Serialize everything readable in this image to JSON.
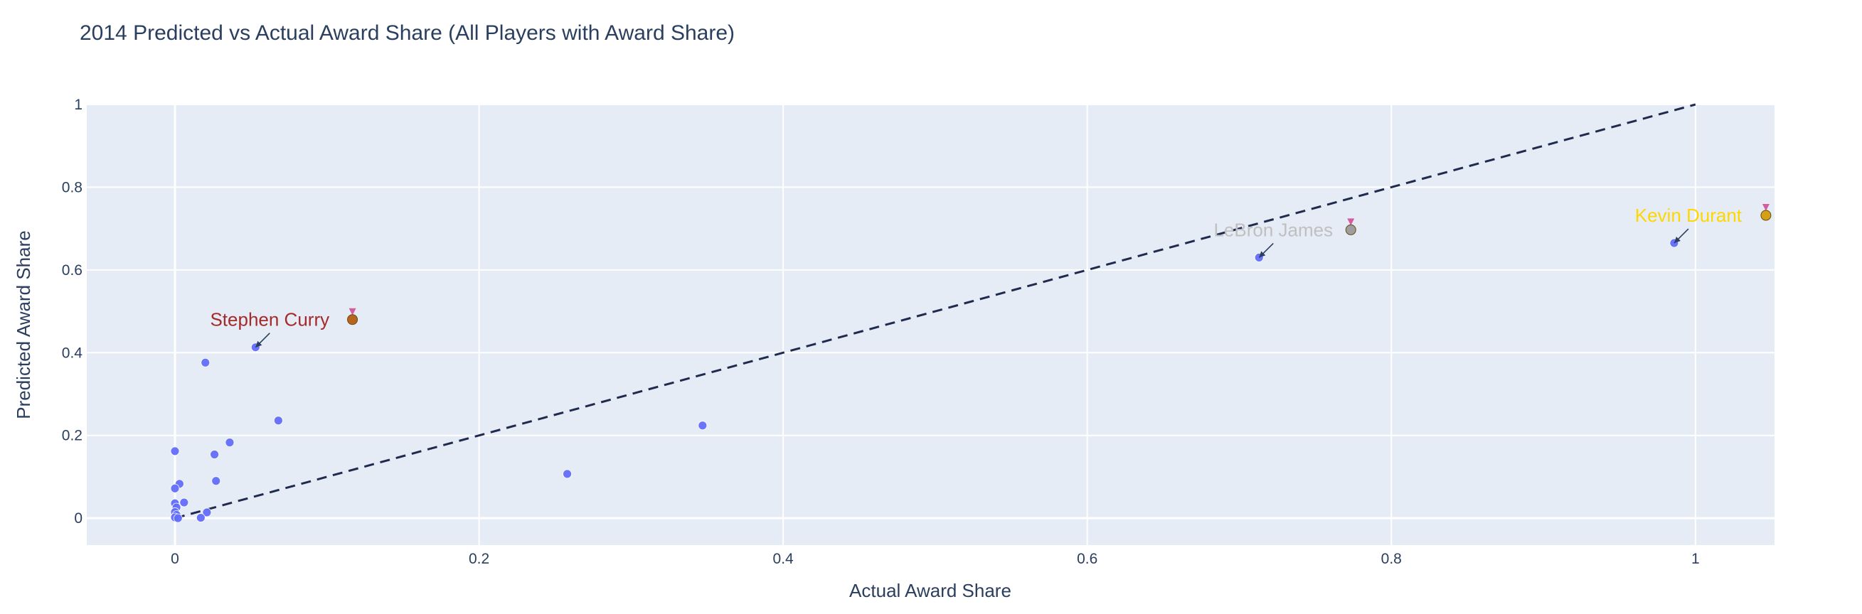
{
  "chart_data": {
    "type": "scatter",
    "title": "2014 Predicted vs Actual Award Share (All Players with Award Share)",
    "xlabel": "Actual Award Share",
    "ylabel": "Predicted Award Share",
    "xlim": [
      -0.058,
      1.052
    ],
    "ylim": [
      -0.065,
      1.0
    ],
    "xticks": [
      0,
      0.2,
      0.4,
      0.6,
      0.8,
      1
    ],
    "xtick_labels": [
      "0",
      "0.2",
      "0.4",
      "0.6",
      "0.8",
      "1"
    ],
    "yticks": [
      0,
      0.2,
      0.4,
      0.6,
      0.8,
      1
    ],
    "ytick_labels": [
      "0",
      "0.2",
      "0.4",
      "0.6",
      "0.8",
      "1"
    ],
    "grid": true,
    "background": "#e5ecf6",
    "point_color": "#636efa",
    "reference_line": {
      "x": [
        0,
        1
      ],
      "y": [
        0,
        1
      ],
      "style": "dashed",
      "color": "#1f2a4f"
    },
    "series": [
      {
        "points": [
          [
            0.986,
            0.665
          ],
          [
            0.713,
            0.63
          ],
          [
            0.347,
            0.224
          ],
          [
            0.258,
            0.107
          ],
          [
            0.068,
            0.236
          ],
          [
            0.053,
            0.413
          ],
          [
            0.036,
            0.183
          ],
          [
            0.027,
            0.09
          ],
          [
            0.026,
            0.154
          ],
          [
            0.02,
            0.376
          ],
          [
            0.021,
            0.014
          ],
          [
            0.017,
            0.001
          ],
          [
            0.006,
            0.038
          ],
          [
            0.003,
            0.083
          ],
          [
            0.0,
            0.162
          ],
          [
            0.0,
            0.072
          ],
          [
            0.0,
            0.036
          ],
          [
            0.001,
            0.026
          ],
          [
            0.0,
            0.015
          ],
          [
            0.001,
            0.008
          ],
          [
            0.0,
            0.002
          ],
          [
            0.002,
            0.0
          ]
        ]
      }
    ],
    "annotations": [
      {
        "text": "Kevin Durant",
        "x": 0.986,
        "y": 0.665,
        "color": "#ffd700",
        "medal": "gold-medal-icon",
        "medal_color": "#d4a017"
      },
      {
        "text": "LeBron James",
        "x": 0.713,
        "y": 0.63,
        "color": "#c0c0c0",
        "medal": "silver-medal-icon",
        "medal_color": "#9e9e9e"
      },
      {
        "text": "Stephen Curry",
        "x": 0.053,
        "y": 0.413,
        "color": "#a52a2a",
        "medal": "bronze-medal-icon",
        "medal_color": "#b5651d"
      }
    ]
  }
}
